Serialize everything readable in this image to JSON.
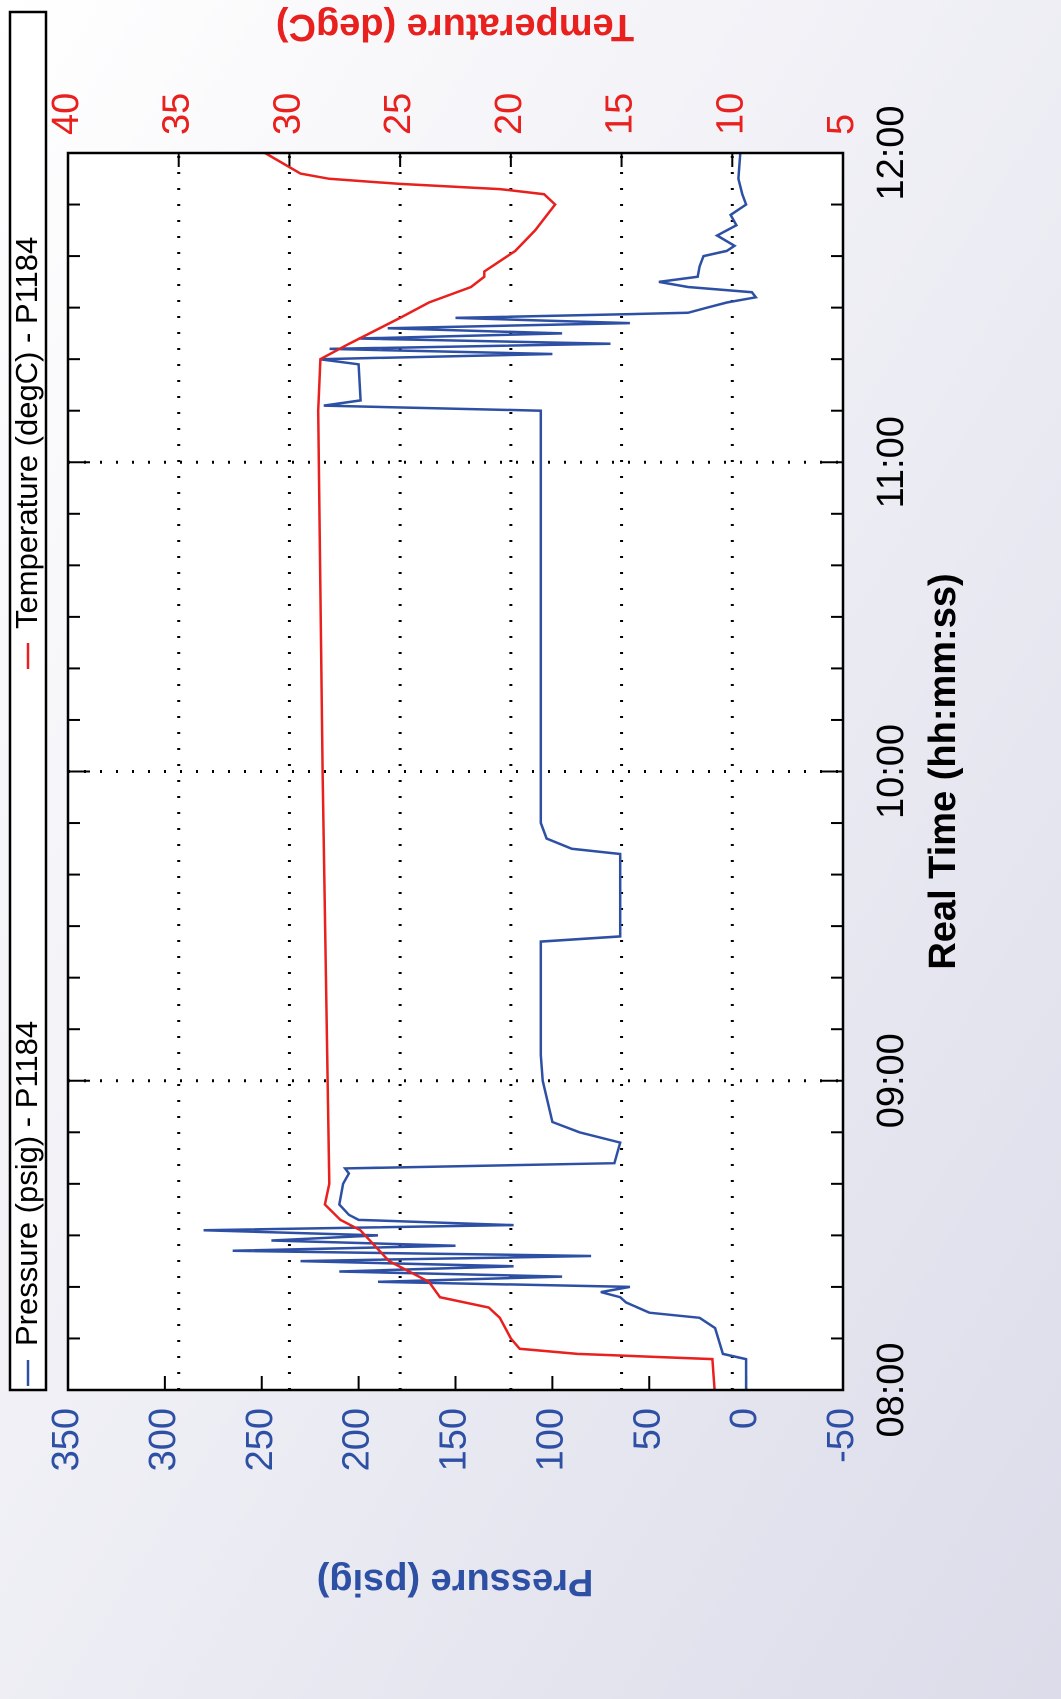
{
  "chart_data": {
    "type": "line",
    "xlabel": "Real Time (hh:mm:ss)",
    "ylabel": "Pressure (psig)",
    "y2label": "Temperature (degC)",
    "xlim": [
      "08:00",
      "12:00"
    ],
    "xticks": [
      "08:00",
      "09:00",
      "10:00",
      "11:00",
      "12:00"
    ],
    "ylim": [
      -50,
      350
    ],
    "yticks": [
      -50,
      0,
      50,
      100,
      150,
      200,
      250,
      300,
      350
    ],
    "y2lim": [
      5,
      40
    ],
    "y2ticks": [
      5,
      10,
      15,
      20,
      25,
      30,
      35,
      40
    ],
    "grid": "y2",
    "legend": "top",
    "series": [
      {
        "name": "Pressure (psig) - P1184",
        "color": "#2e50a4",
        "axis": "y",
        "x": [
          "08:00",
          "08:06",
          "08:07",
          "08:12",
          "08:14",
          "08:15",
          "08:17",
          "08:18",
          "08:19",
          "08:20",
          "08:21",
          "08:22",
          "08:23",
          "08:24",
          "08:25",
          "08:26",
          "08:27",
          "08:28",
          "08:29",
          "08:30",
          "08:31",
          "08:32",
          "08:33",
          "08:34",
          "08:36",
          "08:40",
          "08:42",
          "08:43",
          "08:44",
          "08:48",
          "08:50",
          "08:52",
          "09:00",
          "09:05",
          "09:27",
          "09:28",
          "09:44",
          "09:45",
          "09:47",
          "09:50",
          "11:10",
          "11:11",
          "11:12",
          "11:19",
          "11:20",
          "11:21",
          "11:22",
          "11:23",
          "11:24",
          "11:25",
          "11:26",
          "11:27",
          "11:28",
          "11:29",
          "11:30",
          "11:31",
          "11:32",
          "11:33",
          "11:34",
          "11:35",
          "11:36",
          "11:38",
          "11:40",
          "11:41",
          "11:42",
          "11:44",
          "11:46",
          "11:48",
          "11:50",
          "11:52",
          "11:55",
          "12:00"
        ],
        "values": [
          0,
          0,
          12,
          16,
          24,
          50,
          62,
          65,
          75,
          60,
          190,
          95,
          210,
          120,
          230,
          80,
          265,
          150,
          245,
          190,
          280,
          120,
          200,
          205,
          210,
          208,
          205,
          207,
          68,
          65,
          86,
          100,
          105,
          106,
          106,
          65,
          65,
          90,
          103,
          106,
          106,
          218,
          199,
          200,
          220,
          100,
          215,
          70,
          200,
          95,
          185,
          60,
          150,
          30,
          20,
          10,
          -5,
          -3,
          30,
          45,
          25,
          24,
          22,
          10,
          6,
          15,
          5,
          8,
          0,
          2,
          4,
          3
        ]
      },
      {
        "name": "Temperature (degC) - P1184",
        "color": "#e8201e",
        "axis": "y2",
        "x": [
          "08:00",
          "08:06",
          "08:07",
          "08:08",
          "08:10",
          "08:14",
          "08:16",
          "08:18",
          "08:21",
          "08:25",
          "08:31",
          "08:33",
          "08:36",
          "08:40",
          "10:00",
          "11:10",
          "11:20",
          "11:23",
          "11:28",
          "11:31",
          "11:34",
          "11:36",
          "11:37",
          "11:39",
          "11:41",
          "11:45",
          "11:50",
          "11:52",
          "11:53",
          "11:54",
          "11:55",
          "11:56",
          "12:00"
        ],
        "values": [
          10.8,
          10.9,
          17,
          19.6,
          20,
          20.5,
          21,
          23.2,
          23.7,
          25.5,
          26.8,
          27.7,
          28.4,
          28.2,
          28.5,
          28.7,
          28.6,
          27.3,
          25,
          23.7,
          21.8,
          21.2,
          21.2,
          20.5,
          19.8,
          18.9,
          18,
          18.5,
          20.5,
          25,
          28.2,
          29.5,
          31.1
        ]
      }
    ]
  }
}
